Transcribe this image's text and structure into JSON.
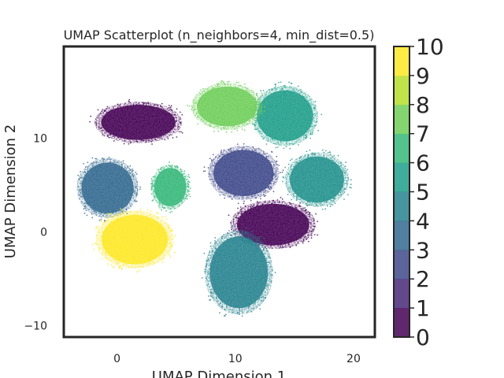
{
  "chart_data": {
    "type": "scatter",
    "title": "UMAP Scatterplot (n_neighbors=4, min_dist=0.5)",
    "xlabel": "UMAP Dimension 1",
    "ylabel": "UMAP Dimension 2",
    "xlim": [
      -4.5,
      21.8
    ],
    "ylim": [
      -11.2,
      19.8
    ],
    "xticks": [
      0,
      10,
      20
    ],
    "yticks": [
      -10,
      0,
      10
    ],
    "xtick_labels": [
      "0",
      "10",
      "20"
    ],
    "ytick_labels": [
      "−10",
      "0",
      "10"
    ],
    "grid": false,
    "colormap": "viridis",
    "colorbar": {
      "ticks": [
        0,
        1,
        2,
        3,
        4,
        5,
        6,
        7,
        8,
        9,
        10
      ],
      "labels": [
        "0",
        "1",
        "2",
        "3",
        "4",
        "5",
        "6",
        "7",
        "8",
        "9",
        "10"
      ],
      "colors": [
        "#440154",
        "#482878",
        "#3e4989",
        "#31688e",
        "#26828e",
        "#1f9e89",
        "#35b779",
        "#6ece58",
        "#b5de2b",
        "#fde725"
      ]
    },
    "clusters": [
      {
        "label": 0,
        "color": "#440154",
        "cx": 1.8,
        "cy": 11.7,
        "rx": 3.7,
        "ry": 2.2
      },
      {
        "label": 1,
        "color": "#440154",
        "cx": 13.2,
        "cy": 0.8,
        "rx": 3.6,
        "ry": 2.6
      },
      {
        "label": 2,
        "color": "#3e4989",
        "cx": 10.7,
        "cy": 6.3,
        "rx": 3.0,
        "ry": 2.9
      },
      {
        "label": 3,
        "color": "#31688e",
        "cx": -0.8,
        "cy": 4.7,
        "rx": 2.6,
        "ry": 3.2
      },
      {
        "label": 4,
        "color": "#26828e",
        "cx": 10.3,
        "cy": -4.3,
        "rx": 2.9,
        "ry": 4.5
      },
      {
        "label": 5,
        "color": "#21918c",
        "cx": 16.9,
        "cy": 5.6,
        "rx": 2.7,
        "ry": 2.9
      },
      {
        "label": 6,
        "color": "#1f9e89",
        "cx": 14.2,
        "cy": 12.4,
        "rx": 2.8,
        "ry": 3.2
      },
      {
        "label": 7,
        "color": "#35b779",
        "cx": 4.5,
        "cy": 4.8,
        "rx": 1.6,
        "ry": 2.4
      },
      {
        "label": 8,
        "color": "#6ece58",
        "cx": 9.3,
        "cy": 13.4,
        "rx": 3.0,
        "ry": 2.5
      },
      {
        "label": 9,
        "color": "#fde725",
        "cx": 1.5,
        "cy": -0.8,
        "rx": 3.3,
        "ry": 3.1
      }
    ]
  }
}
